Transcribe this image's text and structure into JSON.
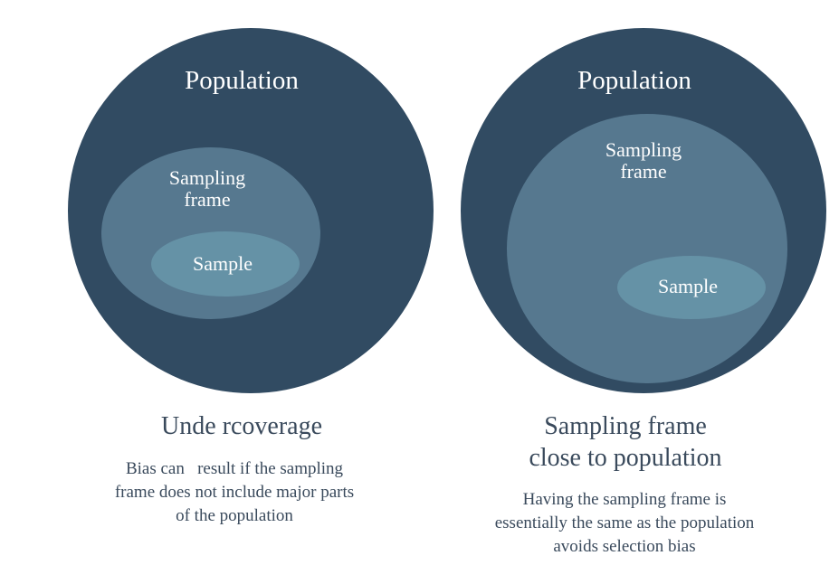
{
  "panels": [
    {
      "population_label": "Population",
      "frame_label_lines": [
        "Sampling",
        "frame"
      ],
      "sample_label": "Sample",
      "title_lines": [
        "Unde rcoverage"
      ],
      "description_lines": [
        "Bias can   result if the sampling",
        "frame does not include major parts",
        "of the population"
      ]
    },
    {
      "population_label": "Population",
      "frame_label_lines": [
        "Sampling",
        "frame"
      ],
      "sample_label": "Sample",
      "title_lines": [
        "Sampling frame",
        "close to population"
      ],
      "description_lines": [
        "Having the sampling frame is",
        "essentially the same as the population",
        "avoids selection bias"
      ]
    }
  ],
  "colors": {
    "population": "#314b62",
    "frame": "#56788f",
    "sample": "#6592a6",
    "label_text": "#ffffff",
    "caption_text": "#3a4a5c"
  }
}
